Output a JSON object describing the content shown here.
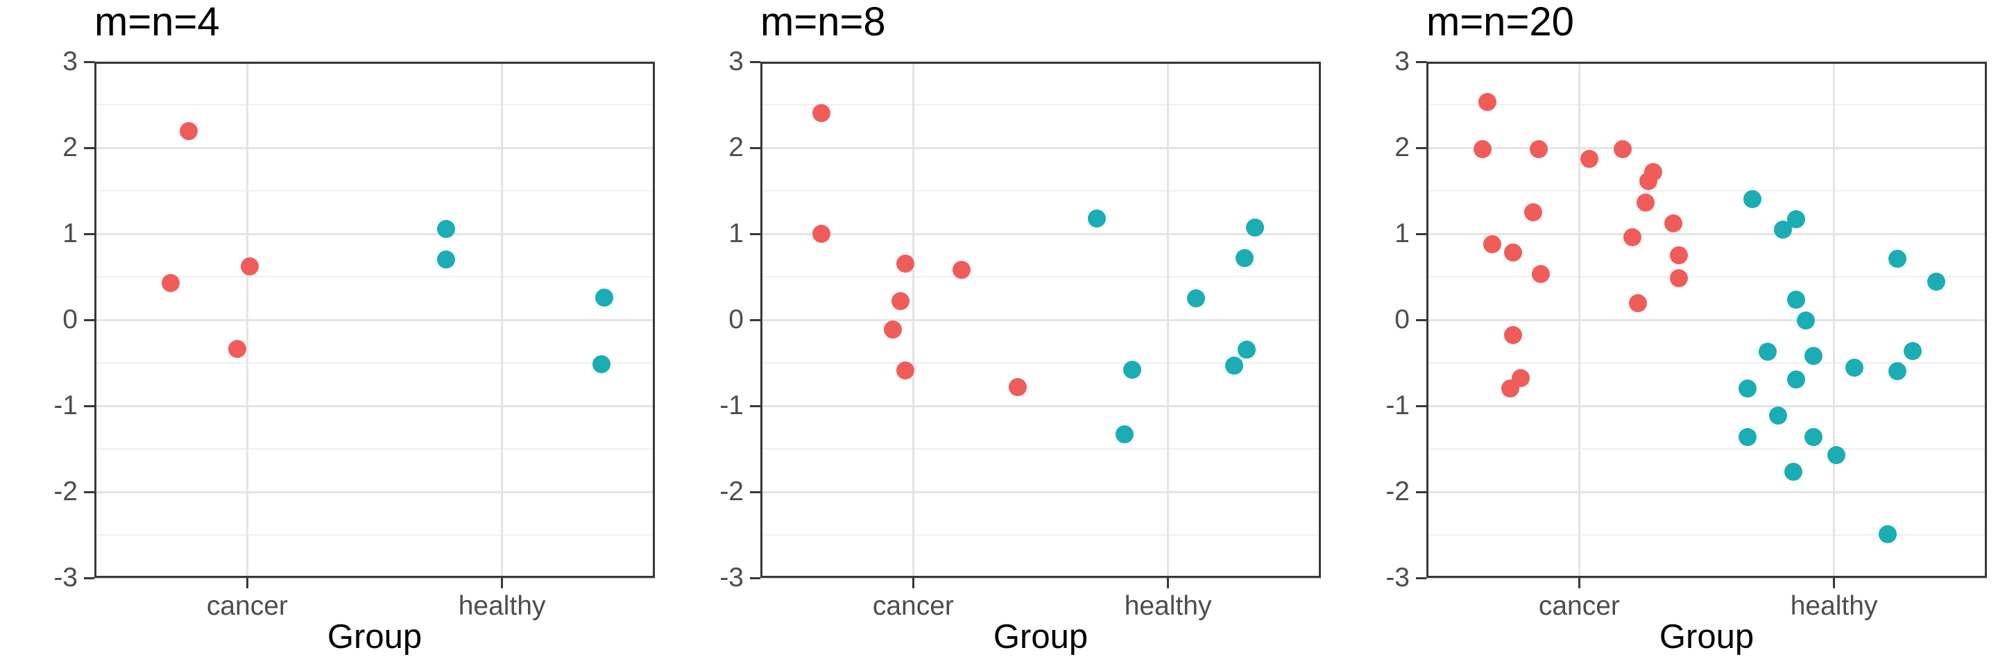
{
  "figure": {
    "x_axis_title": "Group",
    "background_color": "#ffffff",
    "panel_border_color": "#383838",
    "grid_major_color": "#e4e4e4",
    "grid_minor_color": "#efefef",
    "tick_color": "#383838",
    "tick_label_color": "#4d4d4d",
    "title_color": "#000000",
    "group_colors": {
      "cancer": "#f05c5a",
      "healthy": "#1aadb4"
    }
  },
  "chart_data": [
    {
      "type": "scatter",
      "title": "m=n=4",
      "xlabel": "Group",
      "ylabel": "",
      "xlim": [
        0.4,
        2.6
      ],
      "ylim": [
        -3,
        3
      ],
      "grid": true,
      "legend": "none",
      "yticks": [
        3,
        2,
        1,
        0,
        -1,
        -2,
        -3
      ],
      "ytick_labels": [
        "3",
        "2",
        "1",
        "0",
        "-1",
        "-2",
        "-3"
      ],
      "yticks_minor": [
        2.5,
        1.5,
        0.5,
        -0.5,
        -1.5,
        -2.5
      ],
      "categories": [
        {
          "label": "cancer",
          "x": 1
        },
        {
          "label": "healthy",
          "x": 2
        }
      ],
      "series": [
        {
          "name": "cancer",
          "color": "#f05c5a",
          "points": [
            [
              0.77,
              2.19
            ],
            [
              0.7,
              0.43
            ],
            [
              1.01,
              0.62
            ],
            [
              0.96,
              -0.34
            ]
          ]
        },
        {
          "name": "healthy",
          "color": "#1aadb4",
          "points": [
            [
              1.78,
              1.06
            ],
            [
              1.78,
              0.7
            ],
            [
              2.4,
              0.26
            ],
            [
              2.39,
              -0.52
            ]
          ]
        }
      ]
    },
    {
      "type": "scatter",
      "title": "m=n=8",
      "xlabel": "Group",
      "ylabel": "",
      "xlim": [
        0.4,
        2.6
      ],
      "ylim": [
        -3,
        3
      ],
      "grid": true,
      "legend": "none",
      "yticks": [
        3,
        2,
        1,
        0,
        -1,
        -2,
        -3
      ],
      "ytick_labels": [
        "3",
        "2",
        "1",
        "0",
        "-1",
        "-2",
        "-3"
      ],
      "yticks_minor": [
        2.5,
        1.5,
        0.5,
        -0.5,
        -1.5,
        -2.5
      ],
      "categories": [
        {
          "label": "cancer",
          "x": 1
        },
        {
          "label": "healthy",
          "x": 2
        }
      ],
      "series": [
        {
          "name": "cancer",
          "color": "#f05c5a",
          "points": [
            [
              0.64,
              2.4
            ],
            [
              0.64,
              1.0
            ],
            [
              0.97,
              0.65
            ],
            [
              1.19,
              0.58
            ],
            [
              0.95,
              0.22
            ],
            [
              0.92,
              -0.11
            ],
            [
              0.97,
              -0.59
            ],
            [
              1.41,
              -0.78
            ]
          ]
        },
        {
          "name": "healthy",
          "color": "#1aadb4",
          "points": [
            [
              1.72,
              1.18
            ],
            [
              2.34,
              1.07
            ],
            [
              2.3,
              0.72
            ],
            [
              2.11,
              0.25
            ],
            [
              2.31,
              -0.35
            ],
            [
              2.26,
              -0.53
            ],
            [
              1.86,
              -0.58
            ],
            [
              1.83,
              -1.33
            ]
          ]
        }
      ]
    },
    {
      "type": "scatter",
      "title": "m=n=20",
      "xlabel": "Group",
      "ylabel": "",
      "xlim": [
        0.4,
        2.6
      ],
      "ylim": [
        -3,
        3
      ],
      "grid": true,
      "legend": "none",
      "yticks": [
        3,
        2,
        1,
        0,
        -1,
        -2,
        -3
      ],
      "ytick_labels": [
        "3",
        "2",
        "1",
        "0",
        "-1",
        "-2",
        "-3"
      ],
      "yticks_minor": [
        2.5,
        1.5,
        0.5,
        -0.5,
        -1.5,
        -2.5
      ],
      "categories": [
        {
          "label": "cancer",
          "x": 1
        },
        {
          "label": "healthy",
          "x": 2
        }
      ],
      "series": [
        {
          "name": "cancer",
          "color": "#f05c5a",
          "points": [
            [
              0.64,
              2.53
            ],
            [
              0.62,
              1.98
            ],
            [
              0.84,
              1.98
            ],
            [
              1.04,
              1.87
            ],
            [
              1.17,
              1.98
            ],
            [
              1.29,
              1.72
            ],
            [
              1.27,
              1.61
            ],
            [
              1.26,
              1.36
            ],
            [
              0.82,
              1.25
            ],
            [
              1.37,
              1.12
            ],
            [
              1.21,
              0.96
            ],
            [
              0.66,
              0.88
            ],
            [
              0.74,
              0.78
            ],
            [
              1.39,
              0.75
            ],
            [
              0.85,
              0.53
            ],
            [
              1.39,
              0.48
            ],
            [
              1.23,
              0.19
            ],
            [
              0.74,
              -0.18
            ],
            [
              0.77,
              -0.68
            ],
            [
              0.73,
              -0.8
            ]
          ]
        },
        {
          "name": "healthy",
          "color": "#1aadb4",
          "points": [
            [
              1.68,
              1.4
            ],
            [
              1.85,
              1.17
            ],
            [
              1.8,
              1.05
            ],
            [
              2.25,
              0.71
            ],
            [
              2.4,
              0.44
            ],
            [
              1.85,
              0.23
            ],
            [
              1.89,
              -0.01
            ],
            [
              1.74,
              -0.37
            ],
            [
              1.92,
              -0.42
            ],
            [
              2.08,
              -0.56
            ],
            [
              2.31,
              -0.36
            ],
            [
              2.25,
              -0.6
            ],
            [
              1.85,
              -0.69
            ],
            [
              1.66,
              -0.8
            ],
            [
              1.78,
              -1.11
            ],
            [
              1.66,
              -1.36
            ],
            [
              1.92,
              -1.36
            ],
            [
              2.01,
              -1.57
            ],
            [
              1.84,
              -1.77
            ],
            [
              2.21,
              -2.49
            ]
          ]
        }
      ]
    }
  ]
}
